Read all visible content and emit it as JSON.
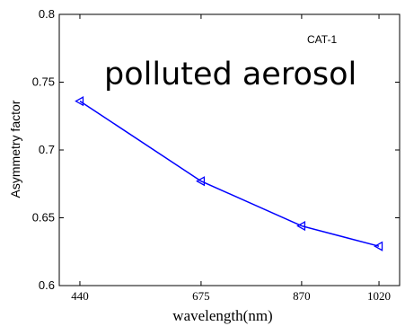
{
  "chart_data": {
    "type": "line",
    "title": "polluted aerosol",
    "corner_label": "CAT-1",
    "xlabel": "wavelength(nm)",
    "ylabel": "Asymmetry factor",
    "categories": [
      "440",
      "675",
      "870",
      "1020"
    ],
    "x": [
      440,
      675,
      870,
      1020
    ],
    "series": [
      {
        "values": [
          0.736,
          0.677,
          0.644,
          0.629
        ],
        "color": "#0000ff",
        "marker": "triangle-left"
      }
    ],
    "xlim": [
      400,
      1060
    ],
    "ylim": [
      0.6,
      0.8
    ],
    "yticks": [
      0.6,
      0.65,
      0.7,
      0.75,
      0.8
    ],
    "ytick_labels": [
      "0.6",
      "0.65",
      "0.7",
      "0.75",
      "0.8"
    ],
    "grid": false,
    "legend": "none"
  }
}
